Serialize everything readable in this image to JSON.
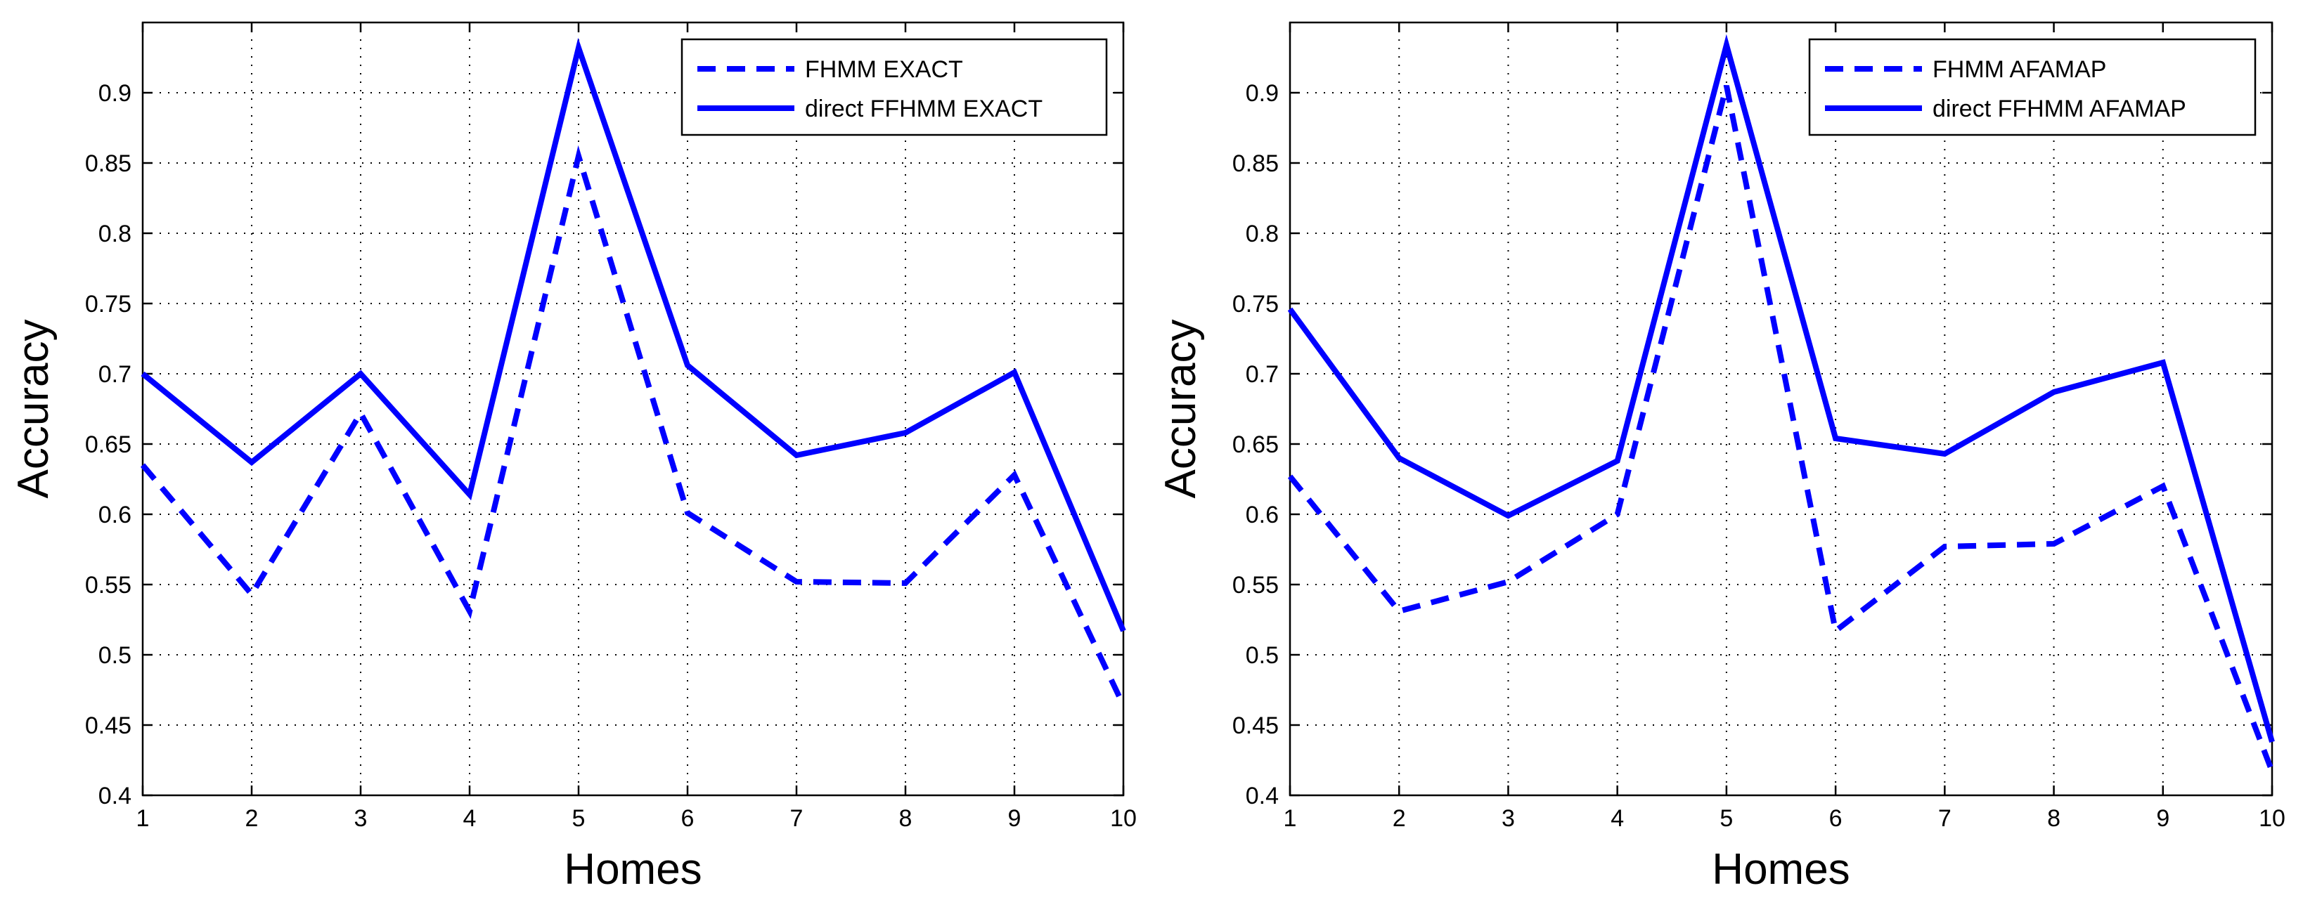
{
  "chart_data": [
    {
      "type": "line",
      "xlabel": "Homes",
      "ylabel": "Accuracy",
      "x": [
        1,
        2,
        3,
        4,
        5,
        6,
        7,
        8,
        9,
        10
      ],
      "xlim": [
        1,
        10
      ],
      "ylim": [
        0.4,
        0.95
      ],
      "xticks": [
        1,
        2,
        3,
        4,
        5,
        6,
        7,
        8,
        9,
        10
      ],
      "yticks": [
        0.4,
        0.45,
        0.5,
        0.55,
        0.6,
        0.65,
        0.7,
        0.75,
        0.8,
        0.85,
        0.9
      ],
      "grid": true,
      "legend_position": "top-right",
      "series": [
        {
          "name": "FHMM EXACT",
          "style": "dashed",
          "color": "#0000ff",
          "values": [
            0.635,
            0.543,
            0.672,
            0.531,
            0.855,
            0.601,
            0.552,
            0.551,
            0.628,
            0.464
          ]
        },
        {
          "name": "direct FFHMM EXACT",
          "style": "solid",
          "color": "#0000ff",
          "values": [
            0.7,
            0.637,
            0.7,
            0.614,
            0.932,
            0.706,
            0.642,
            0.658,
            0.701,
            0.517
          ]
        }
      ]
    },
    {
      "type": "line",
      "xlabel": "Homes",
      "ylabel": "Accuracy",
      "x": [
        1,
        2,
        3,
        4,
        5,
        6,
        7,
        8,
        9,
        10
      ],
      "xlim": [
        1,
        10
      ],
      "ylim": [
        0.4,
        0.95
      ],
      "xticks": [
        1,
        2,
        3,
        4,
        5,
        6,
        7,
        8,
        9,
        10
      ],
      "yticks": [
        0.4,
        0.45,
        0.5,
        0.55,
        0.6,
        0.65,
        0.7,
        0.75,
        0.8,
        0.85,
        0.9
      ],
      "grid": true,
      "legend_position": "top-right",
      "series": [
        {
          "name": "FHMM AFAMAP",
          "style": "dashed",
          "color": "#0000ff",
          "values": [
            0.627,
            0.531,
            0.552,
            0.6,
            0.905,
            0.517,
            0.577,
            0.579,
            0.62,
            0.417
          ]
        },
        {
          "name": "direct FFHMM AFAMAP",
          "style": "solid",
          "color": "#0000ff",
          "values": [
            0.746,
            0.64,
            0.599,
            0.638,
            0.934,
            0.654,
            0.643,
            0.687,
            0.708,
            0.438
          ]
        }
      ]
    }
  ]
}
